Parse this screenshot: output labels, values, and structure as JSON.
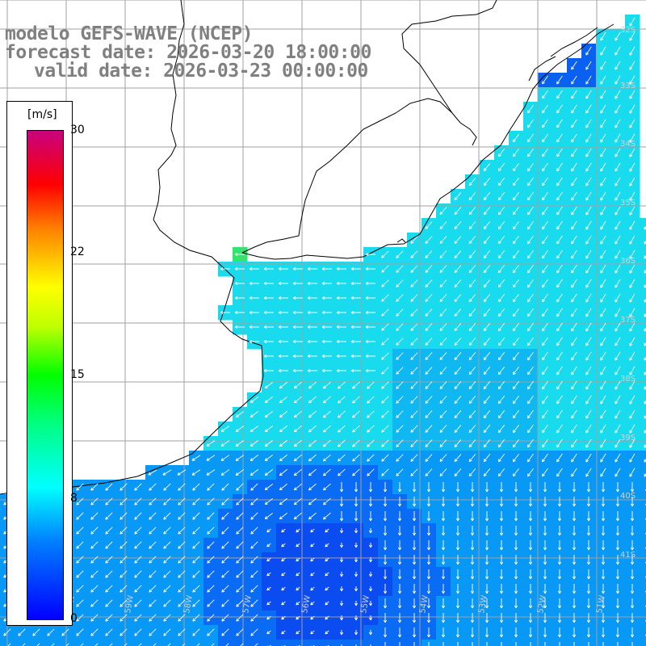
{
  "header": {
    "title_line_1": "modelo GEFS-WAVE (NCEP)",
    "title_line_2": "forecast date: 2026-03-20 18:00:00",
    "title_line_3": "valid date: 2026-03-23 00:00:00"
  },
  "colorbar": {
    "unit": "[m/s]",
    "ticks": [
      {
        "label": "30",
        "value": 30
      },
      {
        "label": "22",
        "value": 22
      },
      {
        "label": "15",
        "value": 15
      },
      {
        "label": "8",
        "value": 8
      },
      {
        "label": "0",
        "value": 0
      }
    ],
    "min": 0,
    "max": 30
  },
  "axes": {
    "lat_labels": [
      "32S",
      "33S",
      "34S",
      "35S",
      "36S",
      "37S",
      "38S",
      "39S",
      "40S",
      "41S"
    ],
    "lon_labels": [
      "61W",
      "60W",
      "59W",
      "58W",
      "57W",
      "56W",
      "55W",
      "54W",
      "53W",
      "52W",
      "51W"
    ],
    "grid": true
  },
  "colors": {
    "land": "#ffffff",
    "coast": "#000000",
    "grid": "#a0a0a0",
    "arrow": "#ffffff",
    "title": "#808080"
  },
  "field": {
    "variable": "wind speed and direction",
    "units": "m/s",
    "lat_range": [
      -41.5,
      -31.3
    ],
    "lon_range": [
      -61.4,
      -50.5
    ]
  }
}
